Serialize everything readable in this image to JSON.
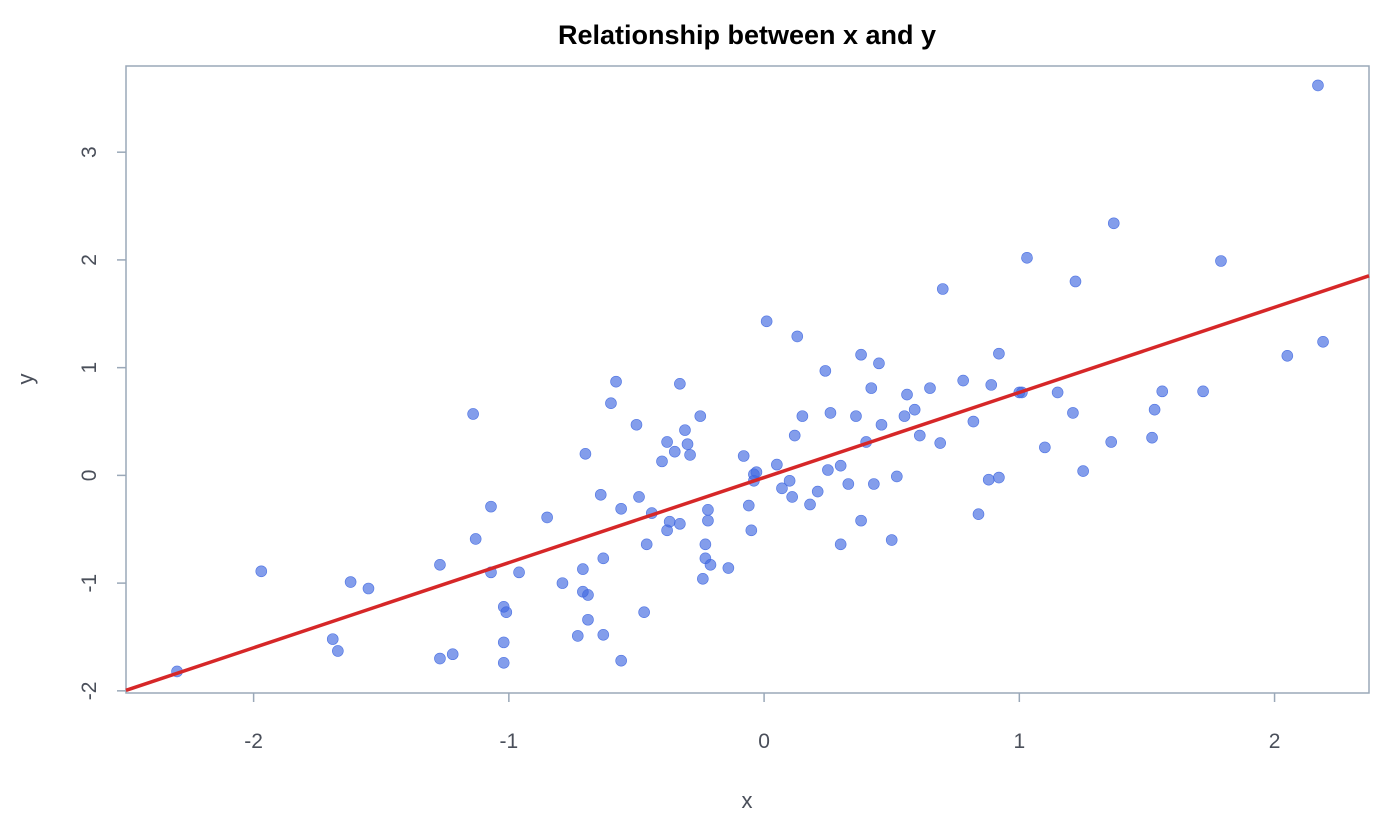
{
  "chart_data": {
    "type": "scatter",
    "title": "Relationship between x and y",
    "xlabel": "x",
    "ylabel": "y",
    "xlim": [
      -2.5,
      2.37
    ],
    "ylim": [
      -2.02,
      3.8
    ],
    "xticks": [
      -2,
      -1,
      0,
      1,
      2
    ],
    "xtick_labels": [
      "-2",
      "-1",
      "0",
      "1",
      "2"
    ],
    "yticks": [
      -2,
      -1,
      0,
      1,
      2,
      3
    ],
    "ytick_labels": [
      "-2",
      "-1",
      "0",
      "1",
      "2",
      "3"
    ],
    "grid": false,
    "colors": {
      "points": "#4169e1",
      "fit_line": "#d62728",
      "frame": "#9aa8b8"
    },
    "fit_line": {
      "slope": 0.79,
      "intercept": -0.02
    },
    "series": [
      {
        "points": [
          [
            -2.3,
            -1.82
          ],
          [
            -1.97,
            -0.89
          ],
          [
            -1.69,
            -1.52
          ],
          [
            -1.67,
            -1.63
          ],
          [
            -1.62,
            -0.99
          ],
          [
            -1.55,
            -1.05
          ],
          [
            -1.27,
            -0.83
          ],
          [
            -1.27,
            -1.7
          ],
          [
            -1.22,
            -1.66
          ],
          [
            -1.14,
            0.57
          ],
          [
            -1.13,
            -0.59
          ],
          [
            -1.07,
            -0.29
          ],
          [
            -1.07,
            -0.9
          ],
          [
            -1.02,
            -1.22
          ],
          [
            -1.01,
            -1.27
          ],
          [
            -1.02,
            -1.55
          ],
          [
            -1.02,
            -1.74
          ],
          [
            -0.96,
            -0.9
          ],
          [
            -0.85,
            -0.39
          ],
          [
            -0.79,
            -1.0
          ],
          [
            -0.73,
            -1.49
          ],
          [
            -0.71,
            -0.87
          ],
          [
            -0.71,
            -1.08
          ],
          [
            -0.69,
            -1.11
          ],
          [
            -0.69,
            -1.34
          ],
          [
            -0.7,
            0.2
          ],
          [
            -0.64,
            -0.18
          ],
          [
            -0.63,
            -0.77
          ],
          [
            -0.63,
            -1.48
          ],
          [
            -0.6,
            0.67
          ],
          [
            -0.58,
            0.87
          ],
          [
            -0.56,
            -0.31
          ],
          [
            -0.56,
            -1.72
          ],
          [
            -0.5,
            0.47
          ],
          [
            -0.49,
            -0.2
          ],
          [
            -0.47,
            -1.27
          ],
          [
            -0.46,
            -0.64
          ],
          [
            -0.44,
            -0.35
          ],
          [
            -0.4,
            0.13
          ],
          [
            -0.38,
            0.31
          ],
          [
            -0.38,
            -0.51
          ],
          [
            -0.37,
            -0.43
          ],
          [
            -0.35,
            0.22
          ],
          [
            -0.33,
            0.85
          ],
          [
            -0.33,
            -0.45
          ],
          [
            -0.31,
            0.42
          ],
          [
            -0.3,
            0.29
          ],
          [
            -0.29,
            0.19
          ],
          [
            -0.25,
            0.55
          ],
          [
            -0.24,
            -0.96
          ],
          [
            -0.23,
            -0.64
          ],
          [
            -0.23,
            -0.77
          ],
          [
            -0.22,
            -0.32
          ],
          [
            -0.22,
            -0.42
          ],
          [
            -0.21,
            -0.83
          ],
          [
            -0.14,
            -0.86
          ],
          [
            -0.08,
            0.18
          ],
          [
            -0.06,
            -0.28
          ],
          [
            -0.05,
            -0.51
          ],
          [
            -0.04,
            0.01
          ],
          [
            -0.04,
            -0.05
          ],
          [
            -0.03,
            0.03
          ],
          [
            0.01,
            1.43
          ],
          [
            0.05,
            0.1
          ],
          [
            0.07,
            -0.12
          ],
          [
            0.1,
            -0.05
          ],
          [
            0.11,
            -0.2
          ],
          [
            0.12,
            0.37
          ],
          [
            0.13,
            1.29
          ],
          [
            0.15,
            0.55
          ],
          [
            0.18,
            -0.27
          ],
          [
            0.21,
            -0.15
          ],
          [
            0.24,
            0.97
          ],
          [
            0.25,
            0.05
          ],
          [
            0.26,
            0.58
          ],
          [
            0.3,
            0.09
          ],
          [
            0.3,
            -0.64
          ],
          [
            0.33,
            -0.08
          ],
          [
            0.36,
            0.55
          ],
          [
            0.38,
            -0.42
          ],
          [
            0.38,
            1.12
          ],
          [
            0.4,
            0.31
          ],
          [
            0.42,
            0.81
          ],
          [
            0.43,
            -0.08
          ],
          [
            0.45,
            1.04
          ],
          [
            0.46,
            0.47
          ],
          [
            0.5,
            -0.6
          ],
          [
            0.52,
            -0.01
          ],
          [
            0.55,
            0.55
          ],
          [
            0.56,
            0.75
          ],
          [
            0.59,
            0.61
          ],
          [
            0.61,
            0.37
          ],
          [
            0.65,
            0.81
          ],
          [
            0.69,
            0.3
          ],
          [
            0.7,
            1.73
          ],
          [
            0.78,
            0.88
          ],
          [
            0.82,
            0.5
          ],
          [
            0.84,
            -0.36
          ],
          [
            0.88,
            -0.04
          ],
          [
            0.89,
            0.84
          ],
          [
            0.92,
            -0.02
          ],
          [
            0.92,
            1.13
          ],
          [
            1.0,
            0.77
          ],
          [
            1.01,
            0.77
          ],
          [
            1.03,
            2.02
          ],
          [
            1.1,
            0.26
          ],
          [
            1.15,
            0.77
          ],
          [
            1.21,
            0.58
          ],
          [
            1.22,
            1.8
          ],
          [
            1.25,
            0.04
          ],
          [
            1.36,
            0.31
          ],
          [
            1.37,
            2.34
          ],
          [
            1.52,
            0.35
          ],
          [
            1.53,
            0.61
          ],
          [
            1.56,
            0.78
          ],
          [
            1.72,
            0.78
          ],
          [
            1.79,
            1.99
          ],
          [
            2.05,
            1.11
          ],
          [
            2.17,
            3.62
          ],
          [
            2.19,
            1.24
          ]
        ]
      }
    ]
  }
}
